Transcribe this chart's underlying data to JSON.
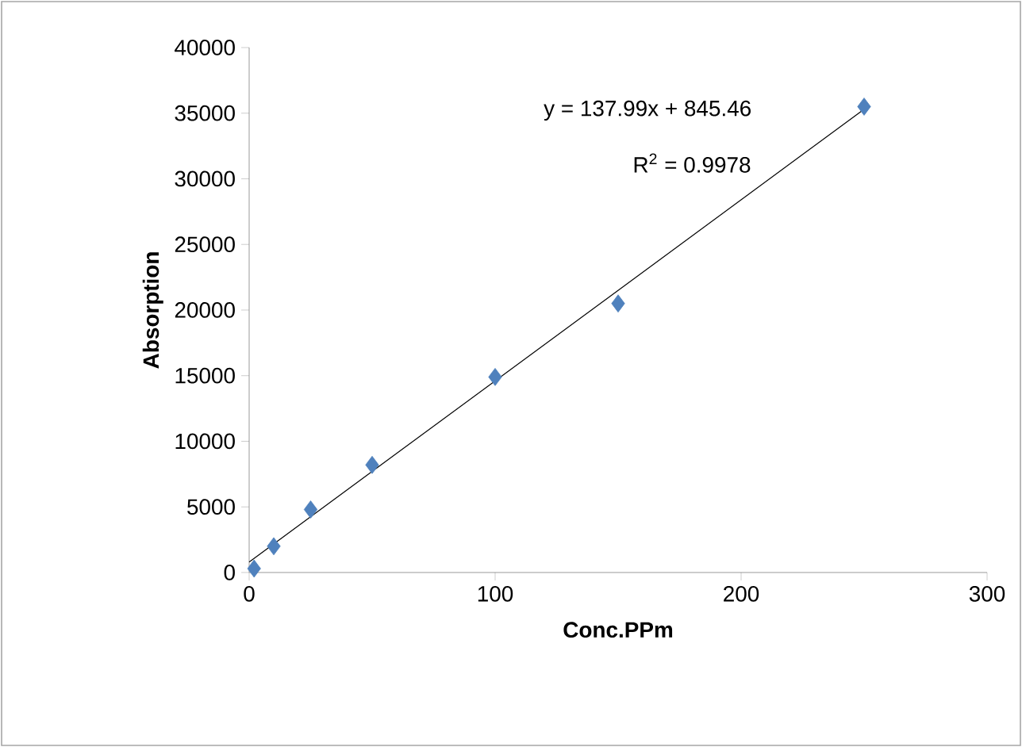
{
  "chart_data": {
    "type": "scatter",
    "xlabel": "Conc.PPm",
    "ylabel": "Absorption",
    "annotations": [
      "y = 137.99x + 845.46",
      "R$^{2}$ = 0.9978"
    ],
    "xlim": [
      0,
      300
    ],
    "xticks": [
      0,
      100,
      200,
      300
    ],
    "ylim": [
      0,
      40000
    ],
    "yticks": [
      0,
      5000,
      10000,
      15000,
      20000,
      25000,
      30000,
      35000,
      40000
    ],
    "series": [
      {
        "color": "#4f81bd",
        "marker": "diamond",
        "x": [
          2,
          10,
          25,
          50,
          100,
          150,
          250
        ],
        "values": [
          300,
          2000,
          4800,
          8200,
          14900,
          20500,
          35500
        ]
      },
      {
        "type": "line",
        "color": "#000000",
        "marker": "none",
        "line_style": "solid",
        "x": [
          0,
          250
        ],
        "values": [
          800,
          35300
        ]
      }
    ]
  }
}
